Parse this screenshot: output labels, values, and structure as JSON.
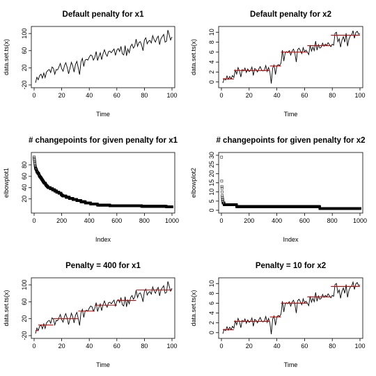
{
  "chart_data": [
    {
      "type": "line",
      "title": "Default penalty for x1",
      "xlabel": "Time",
      "ylabel": "data.set.ts(x)",
      "xlim": [
        0,
        100
      ],
      "ylim": [
        -20,
        110
      ],
      "xticks": [
        "0",
        "20",
        "40",
        "60",
        "80",
        "100"
      ],
      "yticks": [
        "-20",
        "20",
        "60",
        "100"
      ],
      "series": [
        {
          "color": "#000000",
          "y": [
            -15,
            -2,
            -8,
            2,
            5,
            -4,
            8,
            -3,
            10,
            14,
            16,
            9,
            22,
            19,
            5,
            16,
            15,
            22,
            30,
            18,
            12,
            25,
            32,
            21,
            6,
            19,
            33,
            25,
            10,
            28,
            35,
            20,
            4,
            34,
            42,
            23,
            38,
            40,
            38,
            45,
            50,
            48,
            38,
            44,
            58,
            37,
            47,
            55,
            39,
            53,
            62,
            52,
            47,
            58,
            59,
            55,
            60,
            64,
            49,
            61,
            65,
            58,
            70,
            53,
            50,
            72,
            48,
            64,
            55,
            70,
            75,
            66,
            71,
            87,
            70,
            79,
            81,
            73,
            60,
            85,
            90,
            76,
            82,
            84,
            78,
            95,
            86,
            80,
            89,
            94,
            74,
            88,
            93,
            98,
            80,
            82,
            108,
            97,
            85,
            92
          ]
        }
      ]
    },
    {
      "type": "line",
      "title": "Default penalty for x2",
      "xlabel": "Time",
      "ylabel": "data.set.ts(x)",
      "xlim": [
        0,
        100
      ],
      "ylim": [
        -0.6,
        10.6
      ],
      "xticks": [
        "0",
        "20",
        "40",
        "60",
        "80",
        "100"
      ],
      "yticks": [
        "0",
        "2",
        "4",
        "6",
        "8",
        "10"
      ],
      "series": [
        {
          "color": "#000000",
          "y": [
            -0.2,
            0.7,
            0.4,
            1.2,
            0.5,
            1.1,
            0.6,
            1.3,
            0.9,
            2.4,
            1.6,
            2.9,
            2.2,
            1.0,
            2.5,
            2.2,
            2.8,
            1.9,
            2.6,
            2.1,
            2.3,
            3.0,
            1.3,
            2.7,
            2.5,
            2.0,
            2.6,
            3.1,
            2.4,
            2.2,
            2.4,
            3.3,
            2.1,
            2.9,
            2.0,
            -0.3,
            2.8,
            3.4,
            1.5,
            3.2,
            3.5,
            3.3,
            3.8,
            6.4,
            4.2,
            5.8,
            6.1,
            5.9,
            6.3,
            5.4,
            6.2,
            6.6,
            5.8,
            4.0,
            6.5,
            6.8,
            6.3,
            5.7,
            6.9,
            6.1,
            6.4,
            6.0,
            5.5,
            7.4,
            6.2,
            7.0,
            6.3,
            8.2,
            6.4,
            7.5,
            6.8,
            7.0,
            7.8,
            7.2,
            7.6,
            7.3,
            7.9,
            7.5,
            7.1,
            7.6,
            7.4,
            9.8,
            10.0,
            8.1,
            8.7,
            7.0,
            8.4,
            9.1,
            8.0,
            9.8,
            7.2,
            8.6,
            9.3,
            9.5,
            10.3,
            8.8,
            9.9,
            10.2,
            9.6,
            9.7
          ]
        },
        {
          "color": "#cc0000",
          "segments": [
            {
              "x": [
                1,
                9
              ],
              "y": [
                0.6,
                0.6
              ]
            },
            {
              "x": [
                9,
                35
              ],
              "y": [
                2.3,
                2.3
              ]
            },
            {
              "x": [
                35,
                43
              ],
              "y": [
                3.2,
                3.2
              ]
            },
            {
              "x": [
                43,
                62
              ],
              "y": [
                6.0,
                6.0
              ]
            },
            {
              "x": [
                62,
                79
              ],
              "y": [
                7.3,
                7.3
              ]
            },
            {
              "x": [
                79,
                100
              ],
              "y": [
                9.4,
                9.4
              ]
            }
          ]
        }
      ]
    },
    {
      "type": "scatter",
      "title": "# changepoints for given penalty for x1",
      "xlabel": "Index",
      "ylabel": "elbowplot1",
      "xlim": [
        0,
        1000
      ],
      "ylim": [
        0,
        97
      ],
      "xticks": [
        "0",
        "200",
        "400",
        "600",
        "800",
        "1000"
      ],
      "yticks": [
        "20",
        "40",
        "60",
        "80"
      ],
      "marker": "open-square",
      "series": [
        {
          "steps": [
            [
              0,
              94
            ],
            [
              2,
              90
            ],
            [
              4,
              86
            ],
            [
              6,
              82
            ],
            [
              8,
              78
            ],
            [
              10,
              75
            ],
            [
              14,
              72
            ],
            [
              18,
              70
            ],
            [
              22,
              67
            ],
            [
              28,
              65
            ],
            [
              34,
              63
            ],
            [
              40,
              60
            ],
            [
              50,
              57
            ],
            [
              58,
              54
            ],
            [
              66,
              51
            ],
            [
              74,
              48
            ],
            [
              82,
              46
            ],
            [
              92,
              43
            ],
            [
              104,
              40
            ],
            [
              118,
              38
            ],
            [
              134,
              36
            ],
            [
              150,
              34
            ],
            [
              164,
              32
            ],
            [
              180,
              30
            ],
            [
              196,
              28
            ],
            [
              212,
              25
            ],
            [
              232,
              23
            ],
            [
              256,
              21
            ],
            [
              282,
              19
            ],
            [
              310,
              17
            ],
            [
              340,
              15
            ],
            [
              372,
              13
            ],
            [
              410,
              11
            ],
            [
              460,
              9
            ],
            [
              550,
              8
            ],
            [
              720,
              8
            ],
            [
              780,
              7
            ],
            [
              860,
              7
            ],
            [
              960,
              6
            ],
            [
              1000,
              6
            ]
          ]
        }
      ]
    },
    {
      "type": "scatter",
      "title": "# changepoints for given penalty for x2",
      "xlabel": "Index",
      "ylabel": "elbowplot2",
      "xlim": [
        0,
        1000
      ],
      "ylim": [
        0,
        30
      ],
      "xticks": [
        "0",
        "200",
        "400",
        "600",
        "800",
        "1000"
      ],
      "yticks": [
        "0",
        "5",
        "10",
        "15",
        "20",
        "25",
        "30"
      ],
      "marker": "open-square",
      "series": [
        {
          "steps": [
            [
              1,
              29
            ],
            [
              2,
              16
            ],
            [
              3,
              13
            ],
            [
              5,
              10
            ],
            [
              6,
              8
            ],
            [
              7,
              7
            ],
            [
              8,
              6
            ],
            [
              10,
              5
            ],
            [
              12,
              4
            ],
            [
              20,
              3
            ],
            [
              100,
              3
            ],
            [
              110,
              2
            ],
            [
              700,
              2
            ],
            [
              710,
              1
            ],
            [
              1000,
              1
            ]
          ]
        }
      ]
    },
    {
      "type": "line",
      "title": "Penalty = 400 for x1",
      "xlabel": "Time",
      "ylabel": "data.set.ts(x)",
      "xlim": [
        0,
        100
      ],
      "ylim": [
        -20,
        110
      ],
      "xticks": [
        "0",
        "20",
        "40",
        "60",
        "80",
        "100"
      ],
      "yticks": [
        "-20",
        "20",
        "60",
        "100"
      ],
      "series": [
        {
          "color": "#000000",
          "y": [
            -15,
            -2,
            -8,
            2,
            5,
            -4,
            8,
            -3,
            10,
            14,
            16,
            9,
            22,
            19,
            5,
            16,
            15,
            22,
            30,
            18,
            12,
            25,
            32,
            21,
            6,
            19,
            33,
            25,
            10,
            28,
            35,
            20,
            4,
            34,
            42,
            23,
            38,
            40,
            38,
            45,
            50,
            48,
            38,
            44,
            58,
            37,
            47,
            55,
            39,
            53,
            62,
            52,
            47,
            58,
            59,
            55,
            60,
            64,
            49,
            61,
            65,
            58,
            70,
            53,
            50,
            72,
            48,
            64,
            55,
            70,
            75,
            66,
            71,
            87,
            70,
            79,
            81,
            73,
            60,
            85,
            90,
            76,
            82,
            84,
            78,
            95,
            86,
            80,
            89,
            94,
            74,
            88,
            93,
            98,
            80,
            82,
            108,
            97,
            85,
            92
          ]
        },
        {
          "color": "#cc0000",
          "segments": [
            {
              "x": [
                1,
                3
              ],
              "y": [
                -8,
                -8
              ]
            },
            {
              "x": [
                3,
                14
              ],
              "y": [
                5,
                5
              ]
            },
            {
              "x": [
                14,
                32
              ],
              "y": [
                20,
                20
              ]
            },
            {
              "x": [
                32,
                44
              ],
              "y": [
                38,
                38
              ]
            },
            {
              "x": [
                44,
                60
              ],
              "y": [
                52,
                52
              ]
            },
            {
              "x": [
                60,
                74
              ],
              "y": [
                63,
                63
              ]
            },
            {
              "x": [
                74,
                100
              ],
              "y": [
                88,
                88
              ]
            }
          ]
        }
      ]
    },
    {
      "type": "line",
      "title": "Penalty = 10 for x2",
      "xlabel": "Time",
      "ylabel": "data.set.ts(x)",
      "xlim": [
        0,
        100
      ],
      "ylim": [
        -0.6,
        10.6
      ],
      "xticks": [
        "0",
        "20",
        "40",
        "60",
        "80",
        "100"
      ],
      "yticks": [
        "0",
        "2",
        "4",
        "6",
        "8",
        "10"
      ],
      "series": [
        {
          "color": "#000000",
          "y": [
            -0.2,
            0.7,
            0.4,
            1.2,
            0.5,
            1.1,
            0.6,
            1.3,
            0.9,
            2.4,
            1.6,
            2.9,
            2.2,
            1.0,
            2.5,
            2.2,
            2.8,
            1.9,
            2.6,
            2.1,
            2.3,
            3.0,
            1.3,
            2.7,
            2.5,
            2.0,
            2.6,
            3.1,
            2.4,
            2.2,
            2.4,
            3.3,
            2.1,
            2.9,
            2.0,
            -0.3,
            2.8,
            3.4,
            1.5,
            3.2,
            3.5,
            3.3,
            3.8,
            6.4,
            4.2,
            5.8,
            6.1,
            5.9,
            6.3,
            5.4,
            6.2,
            6.6,
            5.8,
            4.0,
            6.5,
            6.8,
            6.3,
            5.7,
            6.9,
            6.1,
            6.4,
            6.0,
            5.5,
            7.4,
            6.2,
            7.0,
            6.3,
            8.2,
            6.4,
            7.5,
            6.8,
            7.0,
            7.8,
            7.2,
            7.6,
            7.3,
            7.9,
            7.5,
            7.1,
            7.6,
            7.4,
            9.8,
            10.0,
            8.1,
            8.7,
            7.0,
            8.4,
            9.1,
            8.0,
            9.8,
            7.2,
            8.6,
            9.3,
            9.5,
            10.3,
            8.8,
            9.9,
            10.2,
            9.6,
            9.7
          ]
        },
        {
          "color": "#cc0000",
          "segments": [
            {
              "x": [
                1,
                9
              ],
              "y": [
                0.6,
                0.6
              ]
            },
            {
              "x": [
                9,
                35
              ],
              "y": [
                2.3,
                2.3
              ]
            },
            {
              "x": [
                35,
                43
              ],
              "y": [
                3.2,
                3.2
              ]
            },
            {
              "x": [
                43,
                62
              ],
              "y": [
                6.0,
                6.0
              ]
            },
            {
              "x": [
                62,
                79
              ],
              "y": [
                7.3,
                7.3
              ]
            },
            {
              "x": [
                79,
                100
              ],
              "y": [
                9.4,
                9.4
              ]
            }
          ]
        }
      ]
    }
  ]
}
